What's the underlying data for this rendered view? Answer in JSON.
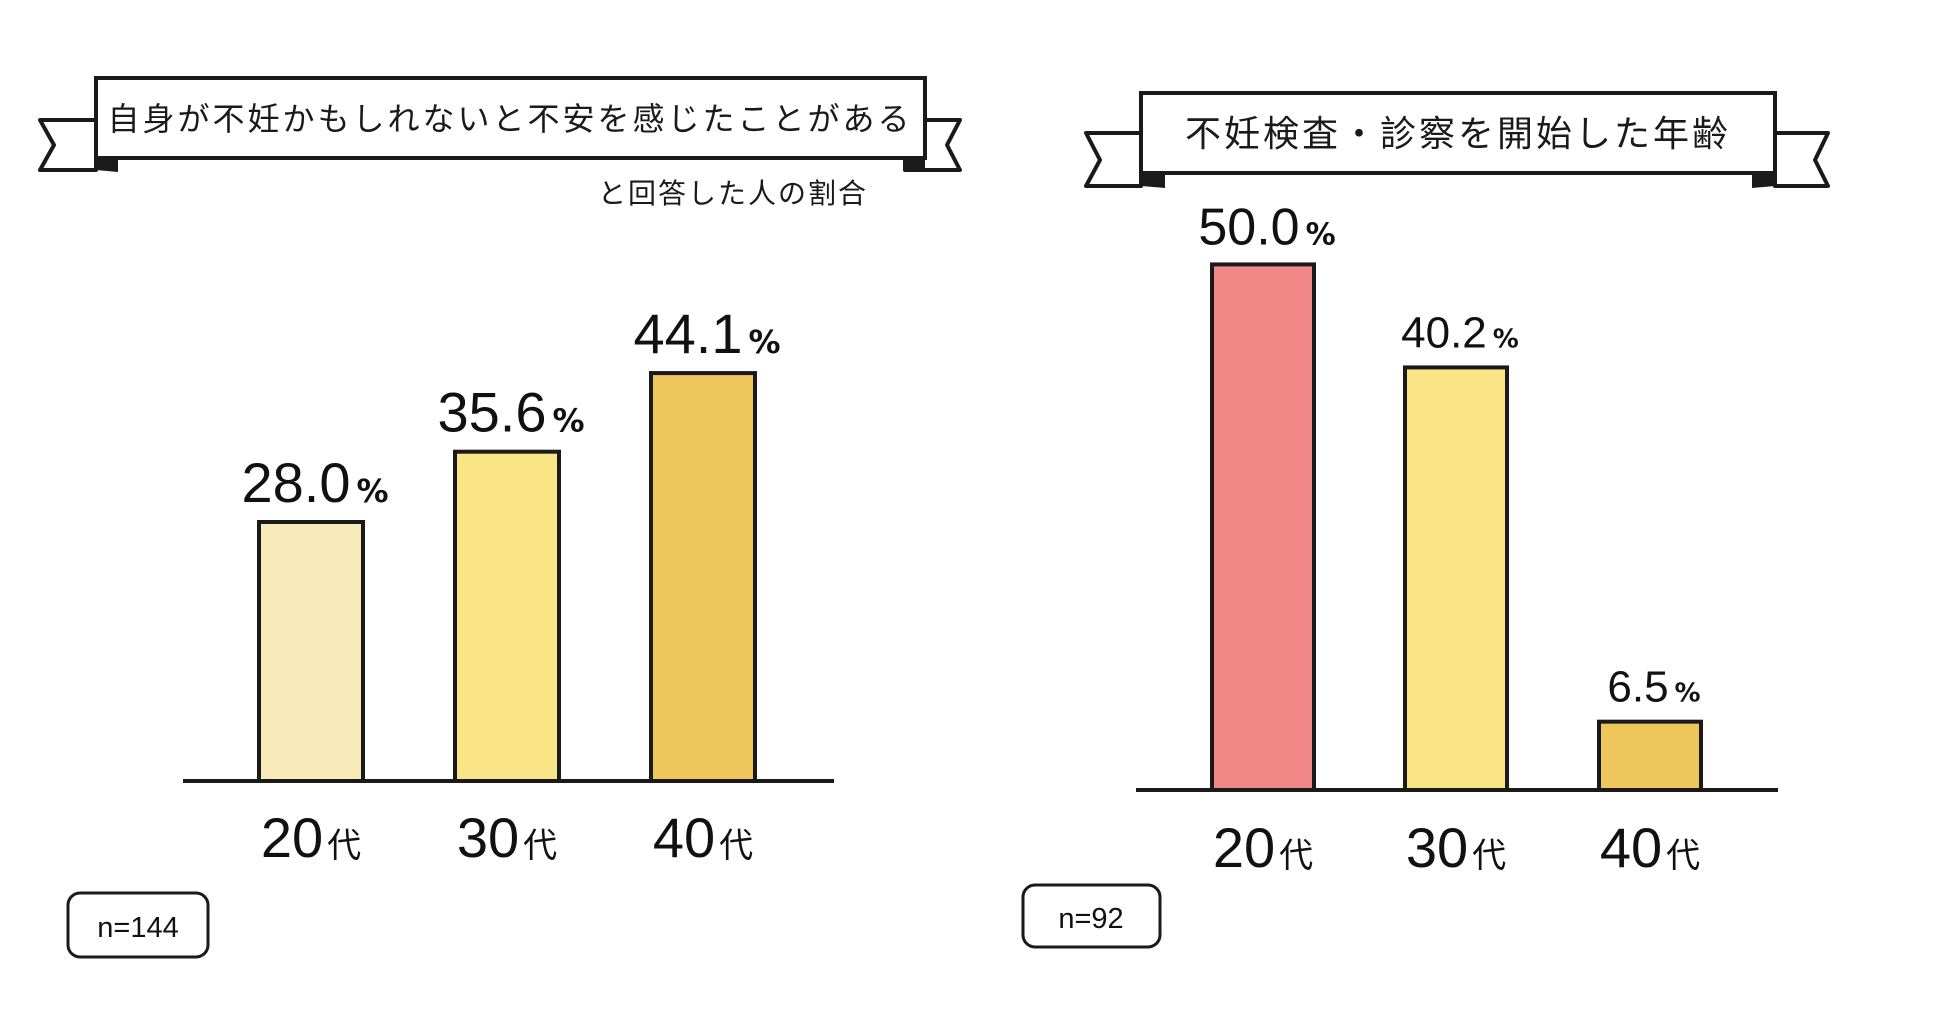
{
  "chart_data": [
    {
      "type": "bar",
      "title": "自身が不妊かもしれないと不安を感じたことがある",
      "subtitle": "と回答した人の割合",
      "categories": [
        "20代",
        "30代",
        "40代"
      ],
      "category_values": [
        "20",
        "30",
        "40"
      ],
      "category_suffix": "代",
      "values": [
        28.0,
        35.6,
        44.1
      ],
      "value_labels": [
        "28.0",
        "35.6",
        "44.1"
      ],
      "unit": "%",
      "bar_colors": [
        "#f8ebb9",
        "#fae586",
        "#efc65b"
      ],
      "ylim": [
        0,
        60
      ],
      "sample": "n=144",
      "xlabel": "",
      "ylabel": "",
      "grid": false
    },
    {
      "type": "bar",
      "title": "不妊検査・診察を開始した年齢",
      "subtitle": "",
      "categories": [
        "20代",
        "30代",
        "40代"
      ],
      "category_values": [
        "20",
        "30",
        "40"
      ],
      "category_suffix": "代",
      "values": [
        50.0,
        40.2,
        6.5
      ],
      "value_labels": [
        "50.0",
        "40.2",
        "6.5"
      ],
      "unit": "%",
      "bar_colors": [
        "#f28787",
        "#fae586",
        "#efc65b"
      ],
      "ylim": [
        0,
        54.7
      ],
      "sample": "n=92",
      "xlabel": "",
      "ylabel": "",
      "grid": false
    }
  ],
  "colors": {
    "outline": "#1a1a1a",
    "background": "#ffffff"
  }
}
